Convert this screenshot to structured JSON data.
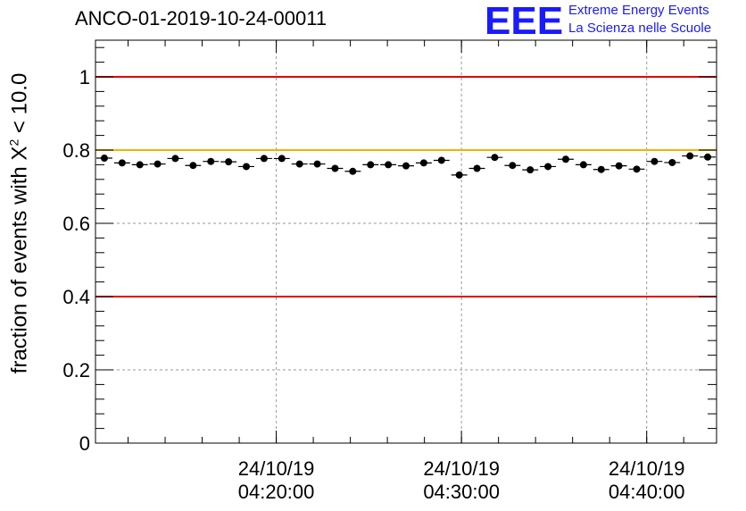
{
  "header": {
    "title": "ANCO-01-2019-10-24-00011",
    "logo_mark": "EEE",
    "logo_line1": "Extreme Energy Events",
    "logo_line2": "La Scienza nelle Scuole"
  },
  "chart_data": {
    "type": "scatter",
    "title": "ANCO-01-2019-10-24-00011",
    "xlabel": "",
    "ylabel_prefix": "fraction of events with ",
    "ylabel_symbol": "X",
    "ylabel_sup": "2",
    "ylabel_suffix": " < 10.0",
    "ylim": [
      0,
      1.1
    ],
    "yticks": [
      0,
      0.2,
      0.4,
      0.6,
      0.8,
      1
    ],
    "ytick_labels": [
      "0",
      "0.2",
      "0.4",
      "0.6",
      "0.8",
      "1"
    ],
    "xlim_minutes": [
      4.17,
      4.73
    ],
    "xtick_positions_minutes": [
      4.333,
      4.5,
      4.667
    ],
    "xtick_labels": [
      [
        "24/10/19",
        "04:20:00"
      ],
      [
        "24/10/19",
        "04:30:00"
      ],
      [
        "24/10/19",
        "04:40:00"
      ]
    ],
    "grid": true,
    "reference_lines": [
      {
        "value": 1.0,
        "color": "#e00000"
      },
      {
        "value": 0.8,
        "color": "#f0b400"
      },
      {
        "value": 0.4,
        "color": "#e00000"
      }
    ],
    "series": [
      {
        "name": "fraction",
        "color": "#000000",
        "values": [
          0.778,
          0.765,
          0.76,
          0.762,
          0.777,
          0.758,
          0.769,
          0.768,
          0.755,
          0.777,
          0.777,
          0.762,
          0.762,
          0.75,
          0.742,
          0.76,
          0.76,
          0.757,
          0.765,
          0.772,
          0.732,
          0.75,
          0.78,
          0.758,
          0.746,
          0.755,
          0.775,
          0.76,
          0.747,
          0.757,
          0.748,
          0.769,
          0.766,
          0.784,
          0.781
        ]
      }
    ]
  }
}
